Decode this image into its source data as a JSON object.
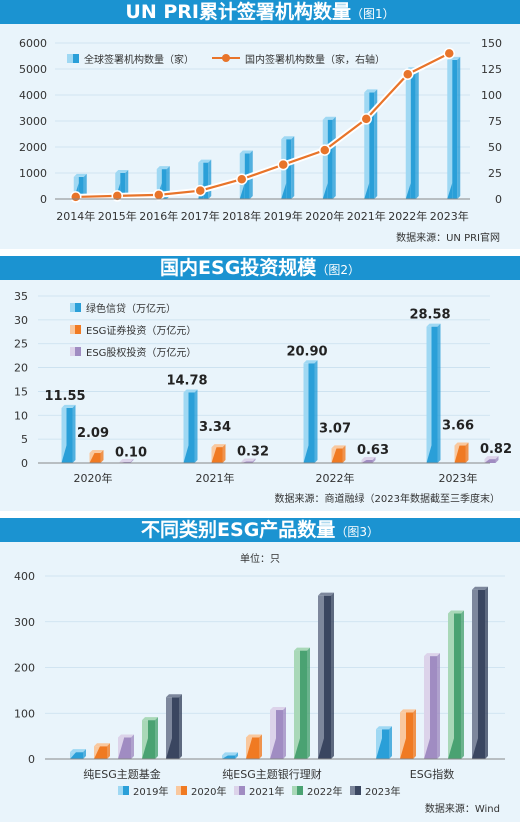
{
  "colors": {
    "header_bg": "#1b93d1",
    "panel_bg": "#e9f4fb",
    "blue": "#2a9fd8",
    "blue_light": "#9fd8f3",
    "orange": "#f07a22",
    "orange_light": "#f9c89e",
    "purple": "#a08cc2",
    "purple_light": "#dcd3ea",
    "green": "#4aa272",
    "green_light": "#a9d8b8",
    "navy": "#3a4660",
    "navy_light": "#7d879c",
    "line": "#e8742a"
  },
  "chart1": {
    "title": "UN PRI累计签署机构数量",
    "fig_label": "（图1）",
    "source": "数据来源：UN PRI官网",
    "legend": [
      "全球签署机构数量（家）",
      "国内签署机构数量（家，右轴）"
    ],
    "y_ticks": [
      "6000",
      "5000",
      "4000",
      "3000",
      "2000",
      "1000",
      "0"
    ],
    "y2_ticks": [
      "150",
      "125",
      "100",
      "75",
      "50",
      "25",
      "0"
    ],
    "x_labels": [
      "2014年",
      "2015年",
      "2016年",
      "2017年",
      "2018年",
      "2019年",
      "2020年",
      "2021年",
      "2022年",
      "2023年"
    ]
  },
  "chart2": {
    "title": "国内ESG投资规模",
    "fig_label": "（图2）",
    "source": "数据来源：商道融绿（2023年数据截至三季度末）",
    "legend": [
      "绿色信贷（万亿元）",
      "ESG证券投资（万亿元）",
      "ESG股权投资（万亿元）"
    ],
    "y_ticks": [
      "35",
      "30",
      "25",
      "20",
      "15",
      "10",
      "5",
      "0"
    ],
    "x_labels": [
      "2020年",
      "2021年",
      "2022年",
      "2023年"
    ],
    "value_labels": [
      [
        "11.55",
        "2.09",
        "0.10"
      ],
      [
        "14.78",
        "3.34",
        "0.32"
      ],
      [
        "20.90",
        "3.07",
        "0.63"
      ],
      [
        "28.58",
        "3.66",
        "0.82"
      ]
    ]
  },
  "chart3": {
    "title": "不同类别ESG产品数量",
    "fig_label": "（图3）",
    "unit": "单位：只",
    "source": "数据来源：Wind",
    "y_ticks": [
      "400",
      "300",
      "200",
      "100",
      "0"
    ],
    "x_labels": [
      "纯ESG主题基金",
      "纯ESG主题银行理财",
      "ESG指数"
    ],
    "legend": [
      "2019年",
      "2020年",
      "2021年",
      "2022年",
      "2023年"
    ]
  },
  "chart_data": [
    {
      "type": "bar",
      "title": "UN PRI累计签署机构数量",
      "categories": [
        "2014年",
        "2015年",
        "2016年",
        "2017年",
        "2018年",
        "2019年",
        "2020年",
        "2021年",
        "2022年",
        "2023年"
      ],
      "ylim": [
        0,
        6000
      ],
      "y2lim": [
        0,
        150
      ],
      "series": [
        {
          "name": "全球签署机构数量（家）",
          "type": "bar",
          "values": [
            850,
            1000,
            1150,
            1400,
            1750,
            2300,
            3050,
            4100,
            4950,
            5350
          ]
        },
        {
          "name": "国内签署机构数量（家，右轴）",
          "type": "line",
          "axis": "right",
          "values": [
            2,
            3,
            4,
            8,
            19,
            33,
            47,
            77,
            120,
            140
          ]
        }
      ]
    },
    {
      "type": "bar",
      "title": "国内ESG投资规模",
      "categories": [
        "2020年",
        "2021年",
        "2022年",
        "2023年"
      ],
      "ylim": [
        0,
        35
      ],
      "series": [
        {
          "name": "绿色信贷（万亿元）",
          "values": [
            11.55,
            14.78,
            20.9,
            28.58
          ]
        },
        {
          "name": "ESG证券投资（万亿元）",
          "values": [
            2.09,
            3.34,
            3.07,
            3.66
          ]
        },
        {
          "name": "ESG股权投资（万亿元）",
          "values": [
            0.1,
            0.32,
            0.63,
            0.82
          ]
        }
      ]
    },
    {
      "type": "bar",
      "title": "不同类别ESG产品数量",
      "categories": [
        "纯ESG主题基金",
        "纯ESG主题银行理财",
        "ESG指数"
      ],
      "ylim": [
        0,
        400
      ],
      "series": [
        {
          "name": "2019年",
          "values": [
            15,
            8,
            65
          ]
        },
        {
          "name": "2020年",
          "values": [
            28,
            47,
            102
          ]
        },
        {
          "name": "2021年",
          "values": [
            47,
            107,
            225
          ]
        },
        {
          "name": "2022年",
          "values": [
            85,
            237,
            318
          ]
        },
        {
          "name": "2023年",
          "values": [
            135,
            357,
            370
          ]
        }
      ]
    }
  ]
}
